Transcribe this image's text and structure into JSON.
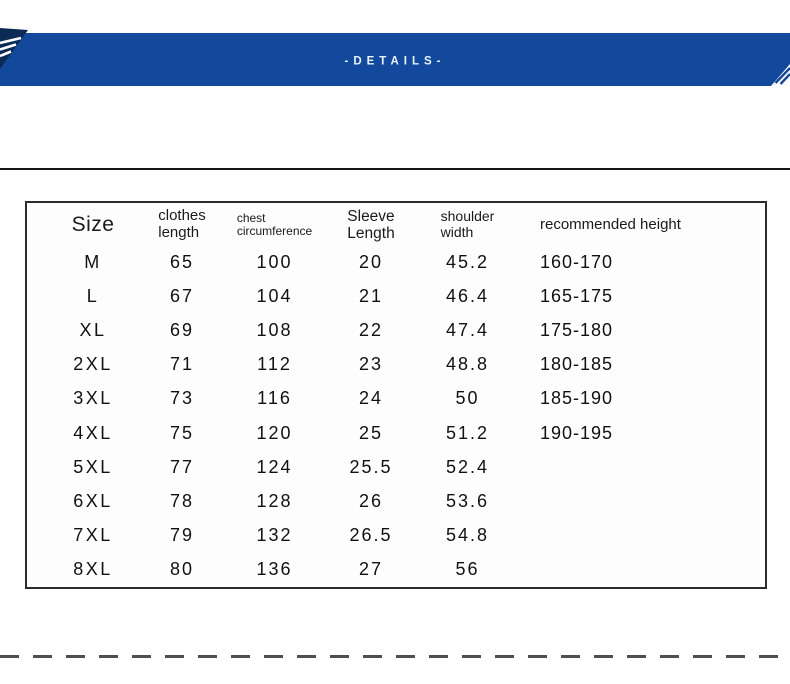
{
  "banner": {
    "title": "-DETAILS-",
    "background_color": "#13499c",
    "accent_dark_color": "#0b2b55",
    "text_color": "#e9f3f9"
  },
  "chart_data": {
    "type": "table",
    "columns": [
      {
        "key": "size",
        "label": "Size"
      },
      {
        "key": "clothes-length",
        "label": "clothes\nlength"
      },
      {
        "key": "chest-circumference",
        "label": "chest\ncircumference"
      },
      {
        "key": "sleeve-length",
        "label": "Sleeve\nLength"
      },
      {
        "key": "shoulder-width",
        "label": "shoulder\nwidth"
      },
      {
        "key": "recommended-height",
        "label": "recommended height"
      }
    ],
    "rows": [
      [
        "M",
        "65",
        "100",
        "20",
        "45.2",
        "160-170"
      ],
      [
        "L",
        "67",
        "104",
        "21",
        "46.4",
        "165-175"
      ],
      [
        "XL",
        "69",
        "108",
        "22",
        "47.4",
        "175-180"
      ],
      [
        "2XL",
        "71",
        "112",
        "23",
        "48.8",
        "180-185"
      ],
      [
        "3XL",
        "73",
        "116",
        "24",
        "50",
        "185-190"
      ],
      [
        "4XL",
        "75",
        "120",
        "25",
        "51.2",
        "190-195"
      ],
      [
        "5XL",
        "77",
        "124",
        "25.5",
        "52.4",
        ""
      ],
      [
        "6XL",
        "78",
        "128",
        "26",
        "53.6",
        ""
      ],
      [
        "7XL",
        "79",
        "132",
        "26.5",
        "54.8",
        ""
      ],
      [
        "8XL",
        "80",
        "136",
        "27",
        "56",
        ""
      ]
    ]
  }
}
